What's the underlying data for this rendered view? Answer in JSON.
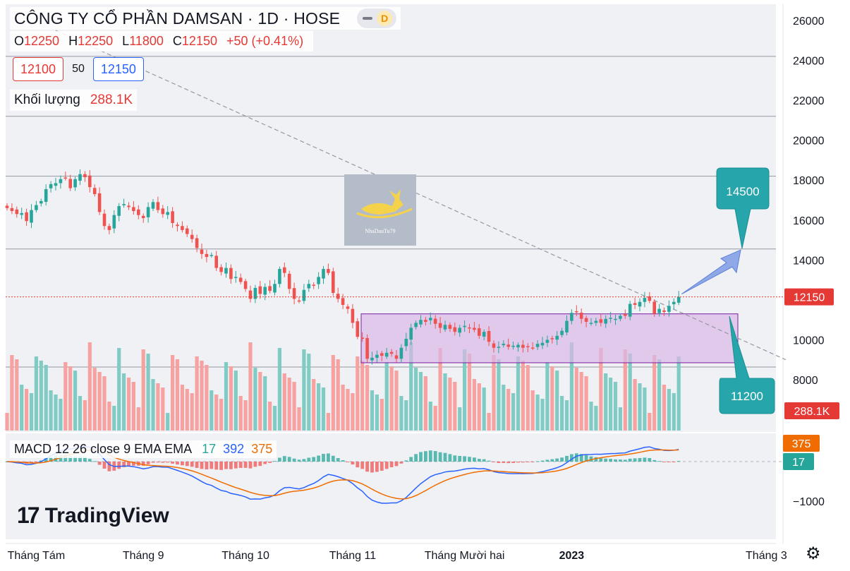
{
  "header": {
    "title": "CÔNG TY CỔ PHẦN DAMSAN · 1D · HOSE",
    "badge": "D",
    "ohlc": [
      {
        "key": "O",
        "value": "12250"
      },
      {
        "key": "H",
        "value": "12250"
      },
      {
        "key": "L",
        "value": "11800"
      },
      {
        "key": "C",
        "value": "12150"
      }
    ],
    "change": "+50 (+0.41%)",
    "bid": "12100",
    "spread": "50",
    "ask": "12150",
    "volume_label": "Khối lượng",
    "volume_value": "288.1K"
  },
  "macd_legend": {
    "label": "MACD 12 26 close 9 EMA EMA",
    "hist": "17",
    "macd": "392",
    "signal": "375"
  },
  "logo": {
    "mark": "17",
    "text": "TradingView"
  },
  "watermark": {
    "text": "NhaDauTu79"
  },
  "colors": {
    "up": "#26a69a",
    "down": "#ef5350",
    "up_vol": "#80cbc4",
    "down_vol": "#f7a1a1",
    "macd_line": "#2962ff",
    "signal_line": "#ef6c00",
    "box_fill": "#d9b8e6",
    "box_stroke": "#7b1fa2",
    "callout_fill": "#26a5aa",
    "price_tag": "#e53935"
  },
  "chart_data": {
    "type": "candlestick",
    "y_axis": {
      "range": [
        5500,
        26500
      ],
      "ticks": [
        8000,
        10000,
        12000,
        14000,
        16000,
        18000,
        20000,
        22000,
        24000,
        26000
      ],
      "tick_labels": [
        "8000",
        "10000",
        "12000",
        "14000",
        "16000",
        "18000",
        "20000",
        "22000",
        "24000",
        "26000"
      ]
    },
    "x_axis": {
      "labels": [
        {
          "label": "Tháng Tám",
          "index": 6
        },
        {
          "label": "Tháng 9",
          "index": 28
        },
        {
          "label": "Tháng 10",
          "index": 49
        },
        {
          "label": "Tháng 11",
          "index": 71
        },
        {
          "label": "Tháng Mười hai",
          "index": 94
        },
        {
          "label": "2023",
          "index": 116
        },
        {
          "label": "Tháng 3",
          "index": 156
        }
      ]
    },
    "horizontal_lines": [
      24200,
      21200,
      18200,
      14550
    ],
    "last_price": {
      "value": 12150,
      "label": "12150"
    },
    "last_volume_label": "288.1K",
    "ohlc_anchor_closes": [
      16600,
      16450,
      16300,
      16350,
      15950,
      16500,
      16750,
      16950,
      17550,
      17800,
      17850,
      18050,
      18100,
      17600,
      18050,
      18300,
      18150,
      17650,
      17300,
      16400,
      15700,
      15500,
      16250,
      16700,
      16800,
      16650,
      16450,
      16250,
      16100,
      16650,
      16900,
      16500,
      16300,
      16400,
      15850,
      15700,
      15500,
      15300,
      15050,
      14600,
      14300,
      14150,
      14250,
      13600,
      13400,
      13600,
      13050,
      13150,
      12900,
      12550,
      12050,
      12600,
      12300,
      12650,
      12450,
      12800,
      13550,
      13350,
      12550,
      12050,
      11950,
      12500,
      12800,
      12750,
      13150,
      13550,
      13350,
      12350,
      12050,
      11750,
      11550,
      10850,
      10150,
      10050,
      9050,
      9100,
      9250,
      9200,
      9350,
      9300,
      9050,
      9600,
      10050,
      10600,
      10850,
      11000,
      10900,
      11100,
      10800,
      10600,
      10750,
      10550,
      10400,
      10600,
      10700,
      10600,
      10500,
      10200,
      10400,
      9900,
      9600,
      9650,
      9800,
      9650,
      9700,
      9750,
      9600,
      9650,
      9600,
      9800,
      9850,
      10000,
      10050,
      10200,
      10450,
      10950,
      11350,
      11400,
      11050,
      10900,
      10850,
      10950,
      10850,
      11050,
      11100,
      11050,
      11200,
      11200,
      11800,
      11750,
      11900,
      12100,
      11950,
      11300,
      11550,
      11400,
      11700,
      11900,
      12150
    ],
    "resistance_box": {
      "top": 11300,
      "bottom": 8850
    },
    "trendline": {
      "from": {
        "index": 10,
        "value": 25500
      },
      "to": {
        "index": 160,
        "value": 9000
      }
    },
    "targets": [
      {
        "label": "14500",
        "value": 14500
      },
      {
        "label": "11200",
        "value": 11200
      }
    ],
    "macd": {
      "y_ticks": [
        {
          "value": -1000,
          "label": "−1000"
        }
      ],
      "hist_last": 17,
      "macd_last": 392,
      "signal_last": 375,
      "labels": {
        "signal": "375",
        "hist": "17"
      }
    }
  }
}
